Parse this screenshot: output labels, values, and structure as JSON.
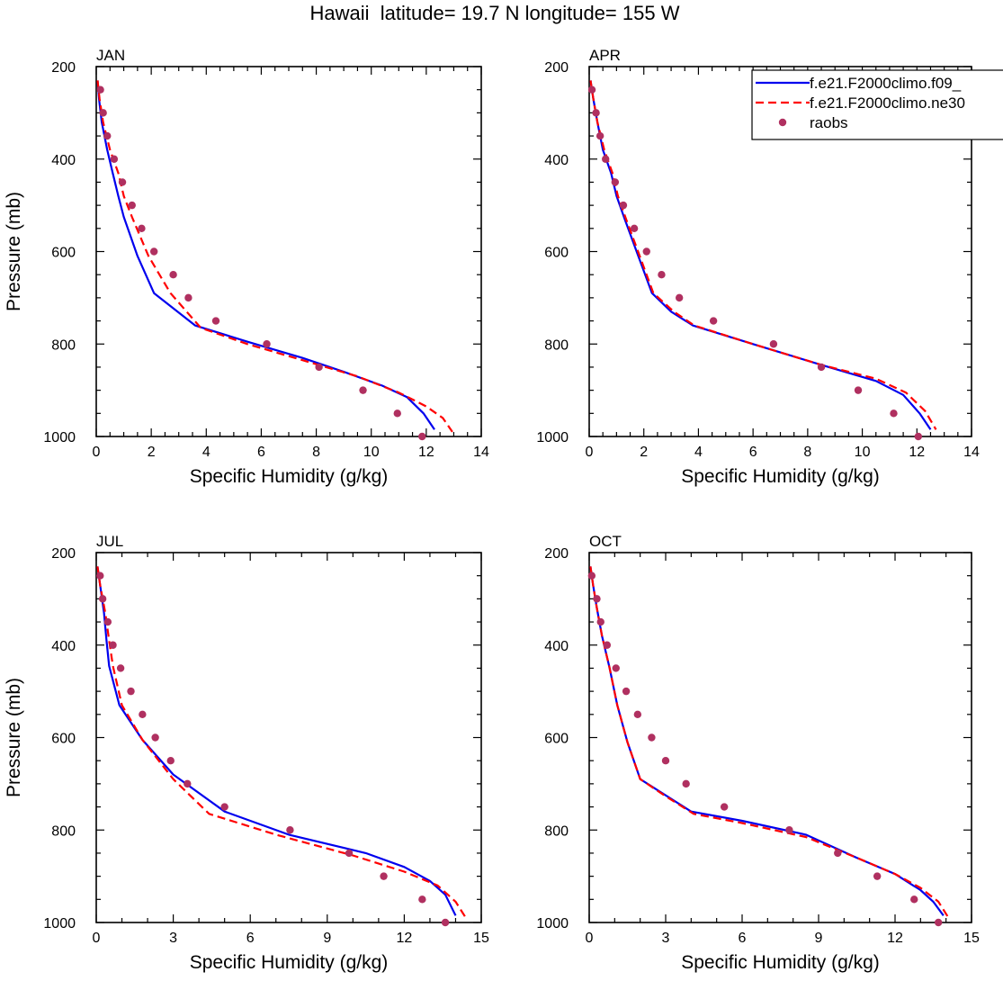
{
  "title": "Hawaii  latitude= 19.7 N longitude= 155 W",
  "chart_data": [
    {
      "type": "line",
      "panel": "JAN",
      "xlabel": "Specific Humidity (g/kg)",
      "ylabel": "Pressure (mb)",
      "xlim": [
        0,
        14
      ],
      "xticks": [
        0,
        2,
        4,
        6,
        8,
        10,
        12,
        14
      ],
      "ylim": [
        200,
        1000
      ],
      "yticks": [
        200,
        400,
        600,
        800,
        1000
      ],
      "y_inverted": true,
      "series": [
        {
          "name": "f.e21.F2000climo.f09_",
          "style": "solid",
          "color": "#0000ee",
          "points": [
            [
              0.05,
              230
            ],
            [
              0.1,
              270
            ],
            [
              0.2,
              320
            ],
            [
              0.4,
              380
            ],
            [
              0.6,
              430
            ],
            [
              0.8,
              480
            ],
            [
              1.0,
              525
            ],
            [
              1.5,
              610
            ],
            [
              2.1,
              690
            ],
            [
              3.6,
              760
            ],
            [
              5.5,
              795
            ],
            [
              7.5,
              830
            ],
            [
              9.0,
              860
            ],
            [
              10.4,
              890
            ],
            [
              11.3,
              915
            ],
            [
              11.9,
              950
            ],
            [
              12.3,
              985
            ]
          ]
        },
        {
          "name": "f.e21.F2000climo.ne30",
          "style": "dashed",
          "color": "#ff0000",
          "points": [
            [
              0.05,
              230
            ],
            [
              0.12,
              270
            ],
            [
              0.25,
              320
            ],
            [
              0.5,
              380
            ],
            [
              0.8,
              430
            ],
            [
              1.0,
              480
            ],
            [
              1.3,
              525
            ],
            [
              1.9,
              610
            ],
            [
              2.7,
              690
            ],
            [
              3.8,
              765
            ],
            [
              5.5,
              800
            ],
            [
              7.5,
              835
            ],
            [
              9.5,
              870
            ],
            [
              11.0,
              905
            ],
            [
              12.0,
              935
            ],
            [
              12.6,
              960
            ],
            [
              12.95,
              990
            ]
          ]
        },
        {
          "name": "raobs",
          "style": "markers",
          "color": "#b03060",
          "points": [
            [
              0.15,
              250
            ],
            [
              0.25,
              300
            ],
            [
              0.4,
              350
            ],
            [
              0.65,
              400
            ],
            [
              0.95,
              450
            ],
            [
              1.3,
              500
            ],
            [
              1.65,
              550
            ],
            [
              2.1,
              600
            ],
            [
              2.8,
              650
            ],
            [
              3.35,
              700
            ],
            [
              4.35,
              750
            ],
            [
              6.2,
              800
            ],
            [
              8.1,
              850
            ],
            [
              9.7,
              900
            ],
            [
              10.95,
              950
            ],
            [
              11.85,
              1000
            ]
          ]
        }
      ]
    },
    {
      "type": "line",
      "panel": "APR",
      "xlabel": "Specific Humidity (g/kg)",
      "ylabel": "",
      "xlim": [
        0,
        14
      ],
      "xticks": [
        0,
        2,
        4,
        6,
        8,
        10,
        12,
        14
      ],
      "ylim": [
        200,
        1000
      ],
      "yticks": [
        200,
        400,
        600,
        800,
        1000
      ],
      "y_inverted": true,
      "series": [
        {
          "name": "f.e21.F2000climo.f09_",
          "style": "solid",
          "color": "#0000ee",
          "points": [
            [
              0.05,
              230
            ],
            [
              0.15,
              270
            ],
            [
              0.3,
              320
            ],
            [
              0.5,
              380
            ],
            [
              0.8,
              430
            ],
            [
              1.0,
              480
            ],
            [
              1.3,
              530
            ],
            [
              1.8,
              610
            ],
            [
              2.3,
              690
            ],
            [
              3.0,
              730
            ],
            [
              3.8,
              760
            ],
            [
              6.0,
              800
            ],
            [
              8.5,
              845
            ],
            [
              10.5,
              880
            ],
            [
              11.5,
              910
            ],
            [
              12.1,
              950
            ],
            [
              12.5,
              985
            ]
          ]
        },
        {
          "name": "f.e21.F2000climo.ne30",
          "style": "dashed",
          "color": "#ff0000",
          "points": [
            [
              0.05,
              230
            ],
            [
              0.15,
              270
            ],
            [
              0.3,
              320
            ],
            [
              0.55,
              380
            ],
            [
              0.85,
              430
            ],
            [
              1.05,
              480
            ],
            [
              1.35,
              530
            ],
            [
              1.85,
              610
            ],
            [
              2.35,
              690
            ],
            [
              3.1,
              730
            ],
            [
              3.85,
              760
            ],
            [
              6.0,
              800
            ],
            [
              8.5,
              845
            ],
            [
              10.5,
              875
            ],
            [
              11.6,
              905
            ],
            [
              12.3,
              945
            ],
            [
              12.7,
              985
            ]
          ]
        },
        {
          "name": "raobs",
          "style": "markers",
          "color": "#b03060",
          "points": [
            [
              0.1,
              250
            ],
            [
              0.25,
              300
            ],
            [
              0.4,
              350
            ],
            [
              0.6,
              400
            ],
            [
              0.95,
              450
            ],
            [
              1.25,
              500
            ],
            [
              1.65,
              550
            ],
            [
              2.1,
              600
            ],
            [
              2.65,
              650
            ],
            [
              3.3,
              700
            ],
            [
              4.55,
              750
            ],
            [
              6.75,
              800
            ],
            [
              8.5,
              850
            ],
            [
              9.85,
              900
            ],
            [
              11.15,
              950
            ],
            [
              12.05,
              1000
            ]
          ]
        }
      ]
    },
    {
      "type": "line",
      "panel": "JUL",
      "xlabel": "Specific Humidity (g/kg)",
      "ylabel": "Pressure (mb)",
      "xlim": [
        0,
        15
      ],
      "xticks": [
        0,
        3,
        6,
        9,
        12,
        15
      ],
      "ylim": [
        200,
        1000
      ],
      "yticks": [
        200,
        400,
        600,
        800,
        1000
      ],
      "y_inverted": true,
      "series": [
        {
          "name": "f.e21.F2000climo.f09_",
          "style": "solid",
          "color": "#0000ee",
          "points": [
            [
              0.05,
              230
            ],
            [
              0.15,
              270
            ],
            [
              0.3,
              330
            ],
            [
              0.4,
              390
            ],
            [
              0.5,
              445
            ],
            [
              0.9,
              530
            ],
            [
              1.8,
              605
            ],
            [
              3.0,
              680
            ],
            [
              5.0,
              760
            ],
            [
              7.5,
              810
            ],
            [
              10.5,
              850
            ],
            [
              12.0,
              880
            ],
            [
              13.0,
              910
            ],
            [
              13.6,
              940
            ],
            [
              14.0,
              985
            ]
          ]
        },
        {
          "name": "f.e21.F2000climo.ne30",
          "style": "dashed",
          "color": "#ff0000",
          "points": [
            [
              0.05,
              230
            ],
            [
              0.15,
              270
            ],
            [
              0.35,
              330
            ],
            [
              0.5,
              390
            ],
            [
              0.65,
              445
            ],
            [
              1.0,
              530
            ],
            [
              1.8,
              605
            ],
            [
              3.0,
              690
            ],
            [
              4.4,
              765
            ],
            [
              7.0,
              810
            ],
            [
              10.0,
              855
            ],
            [
              12.0,
              890
            ],
            [
              13.3,
              920
            ],
            [
              14.0,
              955
            ],
            [
              14.4,
              990
            ]
          ]
        },
        {
          "name": "raobs",
          "style": "markers",
          "color": "#b03060",
          "points": [
            [
              0.15,
              250
            ],
            [
              0.25,
              300
            ],
            [
              0.45,
              350
            ],
            [
              0.65,
              400
            ],
            [
              0.95,
              450
            ],
            [
              1.35,
              500
            ],
            [
              1.8,
              550
            ],
            [
              2.3,
              600
            ],
            [
              2.9,
              650
            ],
            [
              3.55,
              700
            ],
            [
              5.0,
              750
            ],
            [
              7.55,
              800
            ],
            [
              9.85,
              850
            ],
            [
              11.2,
              900
            ],
            [
              12.7,
              950
            ],
            [
              13.6,
              1000
            ]
          ]
        }
      ]
    },
    {
      "type": "line",
      "panel": "OCT",
      "xlabel": "Specific Humidity (g/kg)",
      "ylabel": "",
      "xlim": [
        0,
        15
      ],
      "xticks": [
        0,
        3,
        6,
        9,
        12,
        15
      ],
      "ylim": [
        200,
        1000
      ],
      "yticks": [
        200,
        400,
        600,
        800,
        1000
      ],
      "y_inverted": true,
      "series": [
        {
          "name": "f.e21.F2000climo.f09_",
          "style": "solid",
          "color": "#0000ee",
          "points": [
            [
              0.05,
              230
            ],
            [
              0.15,
              270
            ],
            [
              0.3,
              320
            ],
            [
              0.5,
              380
            ],
            [
              0.8,
              450
            ],
            [
              1.1,
              530
            ],
            [
              1.5,
              610
            ],
            [
              2.0,
              690
            ],
            [
              3.0,
              725
            ],
            [
              4.0,
              760
            ],
            [
              6.0,
              780
            ],
            [
              8.5,
              810
            ],
            [
              10.5,
              860
            ],
            [
              12.0,
              895
            ],
            [
              13.0,
              930
            ],
            [
              13.5,
              955
            ],
            [
              13.9,
              985
            ]
          ]
        },
        {
          "name": "f.e21.F2000climo.ne30",
          "style": "dashed",
          "color": "#ff0000",
          "points": [
            [
              0.05,
              230
            ],
            [
              0.15,
              270
            ],
            [
              0.3,
              320
            ],
            [
              0.5,
              380
            ],
            [
              0.8,
              450
            ],
            [
              1.1,
              530
            ],
            [
              1.5,
              610
            ],
            [
              2.0,
              690
            ],
            [
              3.0,
              727
            ],
            [
              4.1,
              765
            ],
            [
              6.0,
              785
            ],
            [
              8.5,
              815
            ],
            [
              10.5,
              860
            ],
            [
              12.0,
              895
            ],
            [
              13.0,
              925
            ],
            [
              13.7,
              955
            ],
            [
              14.1,
              990
            ]
          ]
        },
        {
          "name": "raobs",
          "style": "markers",
          "color": "#b03060",
          "points": [
            [
              0.1,
              250
            ],
            [
              0.3,
              300
            ],
            [
              0.45,
              350
            ],
            [
              0.7,
              400
            ],
            [
              1.05,
              450
            ],
            [
              1.45,
              500
            ],
            [
              1.9,
              550
            ],
            [
              2.45,
              600
            ],
            [
              3.0,
              650
            ],
            [
              3.8,
              700
            ],
            [
              5.3,
              750
            ],
            [
              7.85,
              800
            ],
            [
              9.75,
              850
            ],
            [
              11.3,
              900
            ],
            [
              12.75,
              950
            ],
            [
              13.7,
              1000
            ]
          ]
        }
      ]
    }
  ],
  "legend": {
    "entries": [
      "f.e21.F2000climo.f09_",
      "f.e21.F2000climo.ne30",
      "raobs"
    ],
    "placement": "top-right"
  }
}
